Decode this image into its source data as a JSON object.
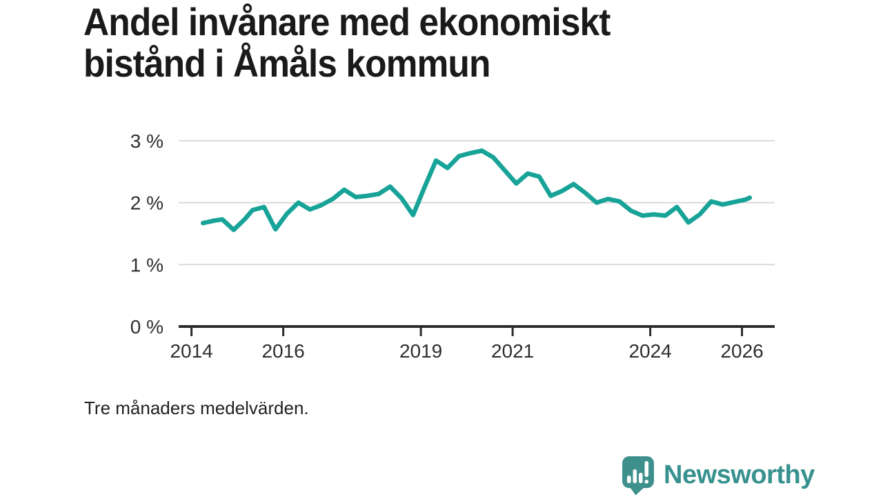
{
  "header": {
    "title_lines": [
      "Andel invånare med ekonomiskt",
      "bistånd i Åmåls kommun"
    ]
  },
  "footnote": "Tre månaders medelvärden.",
  "branding": {
    "name": "Newsworthy",
    "logo_icon": "bar-chart-speech-bubble",
    "logo_color": "#3e908d",
    "text_color": "#37918e"
  },
  "colors": {
    "line": "#17a398",
    "grid": "#d9d9d9",
    "axis": "#2b2b2b",
    "label": "#2e2e2e",
    "title": "#1a1a1a"
  },
  "chart_data": {
    "type": "line",
    "title": "Andel invånare med ekonomiskt bistånd i Åmåls kommun",
    "note": "Tre månaders medelvärden.",
    "unit": "%",
    "xlabel": "",
    "ylabel": "",
    "xlim": [
      2013.72,
      2026.71
    ],
    "ylim": [
      0,
      3.2
    ],
    "grid": true,
    "legend": "none",
    "yticks": [
      {
        "value": 0,
        "label": "0 %"
      },
      {
        "value": 1,
        "label": "1 %"
      },
      {
        "value": 2,
        "label": "2 %"
      },
      {
        "value": 3,
        "label": "3 %"
      }
    ],
    "xticks": [
      {
        "value": 2014,
        "label": "2014"
      },
      {
        "value": 2016,
        "label": "2016"
      },
      {
        "value": 2019,
        "label": "2019"
      },
      {
        "value": 2021,
        "label": "2021"
      },
      {
        "value": 2024,
        "label": "2024"
      },
      {
        "value": 2026,
        "label": "2026"
      }
    ],
    "series": [
      {
        "name": "Andel invånare med ekonomiskt bistånd",
        "color": "#17a398",
        "points": [
          [
            2014.25,
            1.67
          ],
          [
            2014.5,
            1.71
          ],
          [
            2014.67,
            1.73
          ],
          [
            2014.92,
            1.56
          ],
          [
            2015.17,
            1.74
          ],
          [
            2015.33,
            1.88
          ],
          [
            2015.58,
            1.93
          ],
          [
            2015.83,
            1.57
          ],
          [
            2016.08,
            1.82
          ],
          [
            2016.33,
            2.0
          ],
          [
            2016.58,
            1.89
          ],
          [
            2016.83,
            1.96
          ],
          [
            2017.08,
            2.06
          ],
          [
            2017.33,
            2.21
          ],
          [
            2017.58,
            2.09
          ],
          [
            2017.83,
            2.11
          ],
          [
            2018.08,
            2.14
          ],
          [
            2018.33,
            2.26
          ],
          [
            2018.58,
            2.07
          ],
          [
            2018.83,
            1.8
          ],
          [
            2019.08,
            2.25
          ],
          [
            2019.33,
            2.68
          ],
          [
            2019.58,
            2.56
          ],
          [
            2019.83,
            2.75
          ],
          [
            2020.08,
            2.8
          ],
          [
            2020.33,
            2.84
          ],
          [
            2020.58,
            2.73
          ],
          [
            2020.83,
            2.52
          ],
          [
            2021.08,
            2.31
          ],
          [
            2021.33,
            2.47
          ],
          [
            2021.58,
            2.42
          ],
          [
            2021.83,
            2.11
          ],
          [
            2022.08,
            2.19
          ],
          [
            2022.33,
            2.3
          ],
          [
            2022.58,
            2.16
          ],
          [
            2022.83,
            2.0
          ],
          [
            2023.08,
            2.06
          ],
          [
            2023.33,
            2.02
          ],
          [
            2023.58,
            1.87
          ],
          [
            2023.83,
            1.79
          ],
          [
            2024.08,
            1.81
          ],
          [
            2024.33,
            1.79
          ],
          [
            2024.58,
            1.93
          ],
          [
            2024.83,
            1.68
          ],
          [
            2025.08,
            1.81
          ],
          [
            2025.33,
            2.02
          ],
          [
            2025.58,
            1.97
          ],
          [
            2025.83,
            2.01
          ],
          [
            2026.08,
            2.05
          ],
          [
            2026.17,
            2.08
          ]
        ]
      }
    ]
  }
}
